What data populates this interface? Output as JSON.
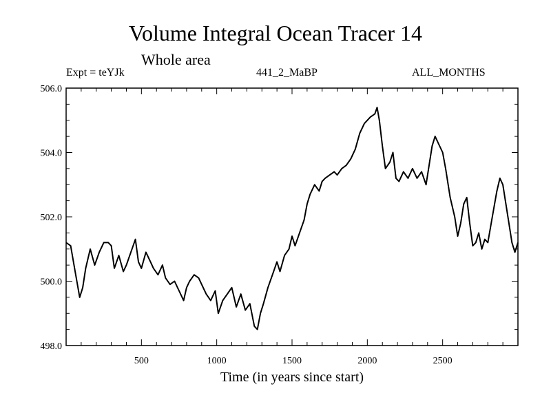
{
  "chart_data": {
    "type": "line",
    "title": "Volume Integral Ocean Tracer 14",
    "subtitle": "Whole area",
    "header_left": "Expt = teYJk",
    "header_center": "441_2_MaBP",
    "header_right": "ALL_MONTHS",
    "xlabel": "Time (in years since start)",
    "ylabel": "",
    "xlim": [
      0,
      3000
    ],
    "ylim": [
      498.0,
      506.0
    ],
    "x_ticks": [
      500,
      1000,
      1500,
      2000,
      2500
    ],
    "x_tick_labels": [
      "500",
      "1000",
      "1500",
      "2000",
      "2500"
    ],
    "y_ticks": [
      498.0,
      500.0,
      502.0,
      504.0,
      506.0
    ],
    "y_tick_labels": [
      "498.0",
      "500.0",
      "502.0",
      "504.0",
      "506.0"
    ],
    "series": [
      {
        "name": "Volume Integral Ocean Tracer 14",
        "x": [
          0,
          30,
          60,
          90,
          110,
          130,
          160,
          190,
          220,
          250,
          280,
          300,
          320,
          350,
          380,
          400,
          430,
          460,
          480,
          500,
          530,
          560,
          580,
          610,
          640,
          660,
          690,
          720,
          750,
          780,
          800,
          820,
          850,
          880,
          900,
          930,
          960,
          990,
          1010,
          1040,
          1070,
          1100,
          1130,
          1160,
          1190,
          1220,
          1250,
          1270,
          1290,
          1310,
          1340,
          1370,
          1400,
          1420,
          1450,
          1480,
          1500,
          1520,
          1550,
          1580,
          1600,
          1620,
          1650,
          1680,
          1700,
          1720,
          1750,
          1780,
          1800,
          1830,
          1860,
          1890,
          1920,
          1950,
          1980,
          2000,
          2020,
          2050,
          2065,
          2080,
          2100,
          2120,
          2150,
          2170,
          2190,
          2210,
          2240,
          2270,
          2300,
          2330,
          2360,
          2390,
          2410,
          2430,
          2450,
          2470,
          2500,
          2520,
          2550,
          2580,
          2600,
          2620,
          2640,
          2660,
          2680,
          2700,
          2720,
          2740,
          2760,
          2780,
          2800,
          2830,
          2860,
          2880,
          2900,
          2920,
          2940,
          2960,
          2980,
          3000
        ],
        "values": [
          501.2,
          501.1,
          500.3,
          499.5,
          499.8,
          500.4,
          501.0,
          500.5,
          500.9,
          501.2,
          501.2,
          501.1,
          500.4,
          500.8,
          500.3,
          500.5,
          500.9,
          501.3,
          500.6,
          500.4,
          500.9,
          500.6,
          500.4,
          500.2,
          500.5,
          500.1,
          499.9,
          500.0,
          499.7,
          499.4,
          499.8,
          500.0,
          500.2,
          500.1,
          499.9,
          499.6,
          499.4,
          499.7,
          499.0,
          499.4,
          499.6,
          499.8,
          499.2,
          499.6,
          499.1,
          499.3,
          498.6,
          498.5,
          499.0,
          499.3,
          499.8,
          500.2,
          500.6,
          500.3,
          500.8,
          501.0,
          501.4,
          501.1,
          501.5,
          501.9,
          502.4,
          502.7,
          503.0,
          502.8,
          503.1,
          503.2,
          503.3,
          503.4,
          503.3,
          503.5,
          503.6,
          503.8,
          504.1,
          504.6,
          504.9,
          505.0,
          505.1,
          505.2,
          505.4,
          505.0,
          504.2,
          503.5,
          503.7,
          504.0,
          503.2,
          503.1,
          503.4,
          503.2,
          503.5,
          503.2,
          503.4,
          503.0,
          503.6,
          504.2,
          504.5,
          504.3,
          504.0,
          503.5,
          502.6,
          502.0,
          501.4,
          501.8,
          502.4,
          502.6,
          501.8,
          501.1,
          501.2,
          501.5,
          501.0,
          501.3,
          501.2,
          502.0,
          502.8,
          503.2,
          503.0,
          502.4,
          501.8,
          501.2,
          500.9,
          501.2
        ]
      }
    ]
  }
}
